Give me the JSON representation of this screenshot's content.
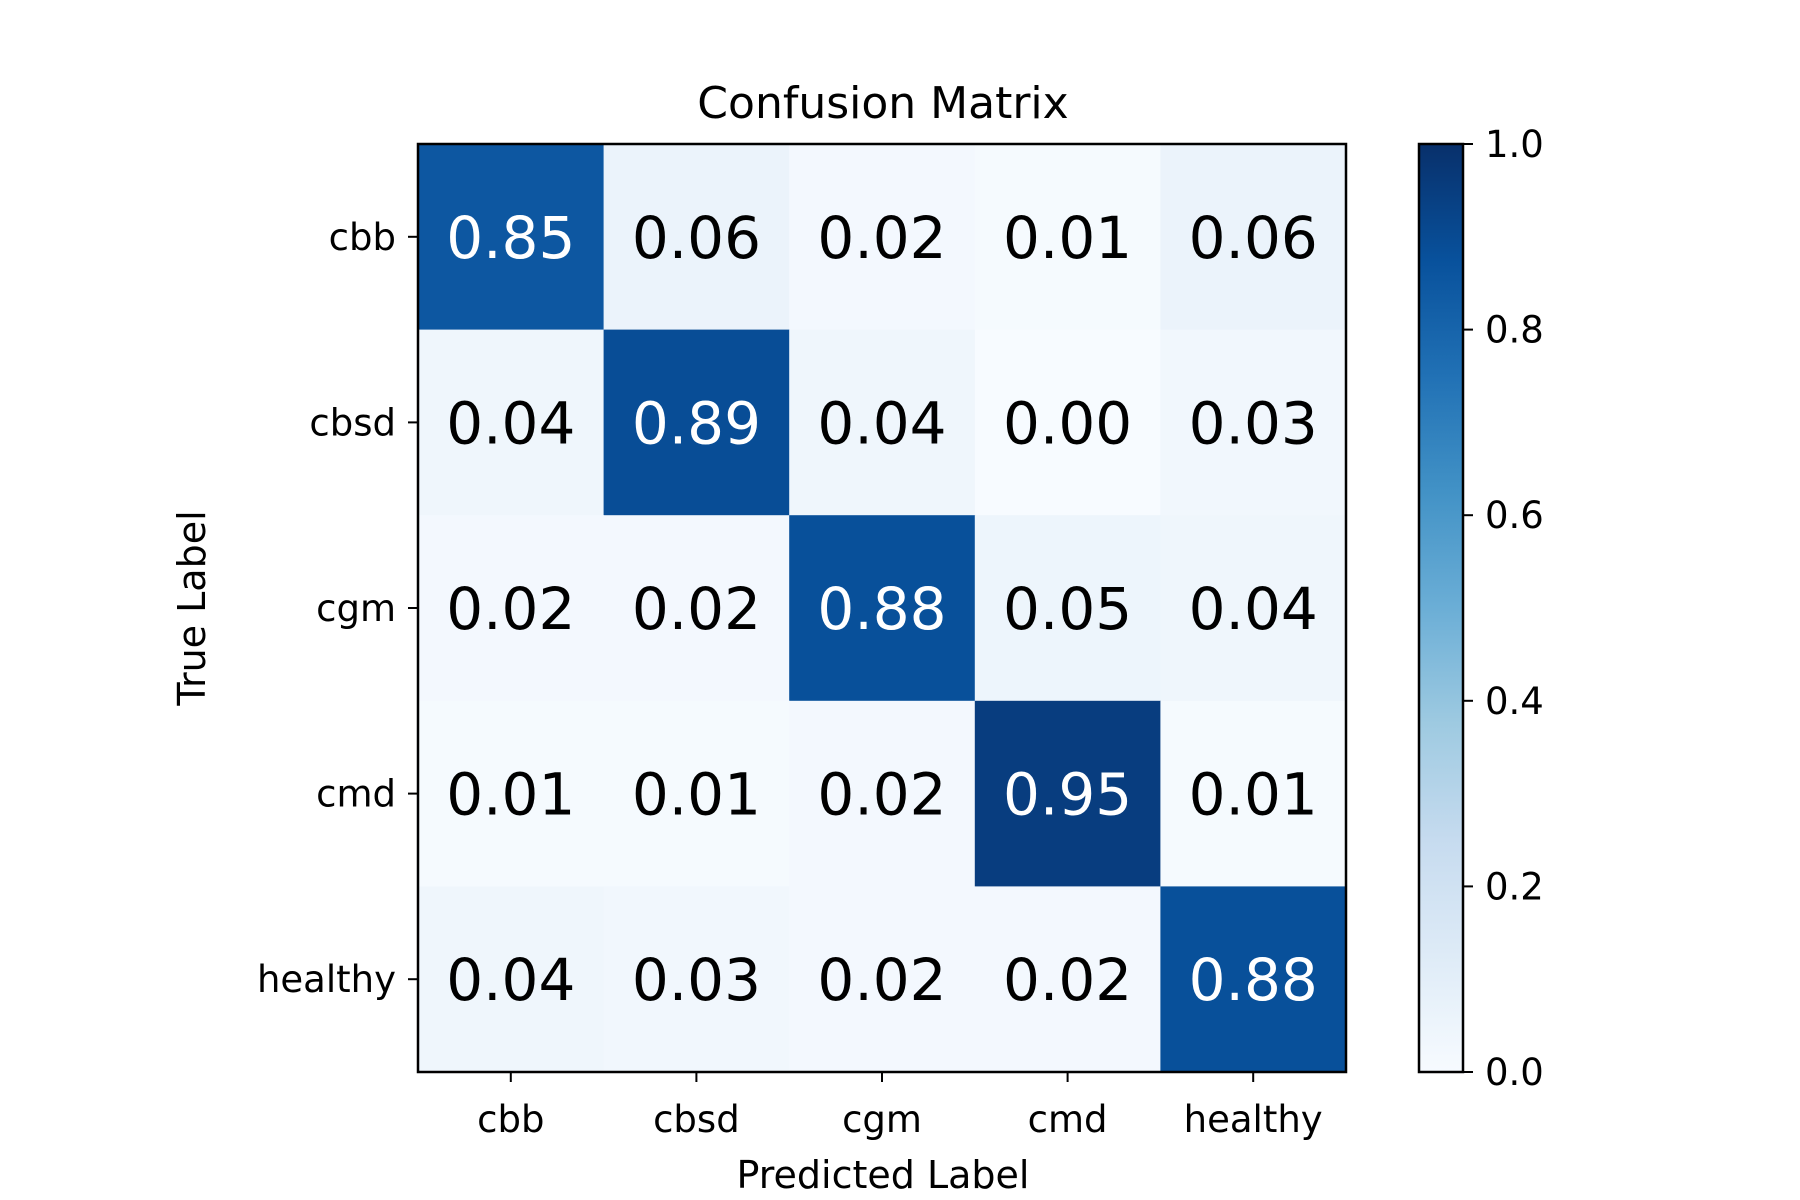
{
  "chart_data": {
    "type": "heatmap",
    "title": "Confusion Matrix",
    "xlabel": "Predicted Label",
    "ylabel": "True Label",
    "x_categories": [
      "cbb",
      "cbsd",
      "cgm",
      "cmd",
      "healthy"
    ],
    "y_categories": [
      "cbb",
      "cbsd",
      "cgm",
      "cmd",
      "healthy"
    ],
    "values": [
      [
        0.85,
        0.06,
        0.02,
        0.01,
        0.06
      ],
      [
        0.04,
        0.89,
        0.04,
        0.0,
        0.03
      ],
      [
        0.02,
        0.02,
        0.88,
        0.05,
        0.04
      ],
      [
        0.01,
        0.01,
        0.02,
        0.95,
        0.01
      ],
      [
        0.04,
        0.03,
        0.02,
        0.02,
        0.88
      ]
    ],
    "value_labels": [
      [
        "0.85",
        "0.06",
        "0.02",
        "0.01",
        "0.06"
      ],
      [
        "0.04",
        "0.89",
        "0.04",
        "0.00",
        "0.03"
      ],
      [
        "0.02",
        "0.02",
        "0.88",
        "0.05",
        "0.04"
      ],
      [
        "0.01",
        "0.01",
        "0.02",
        "0.95",
        "0.01"
      ],
      [
        "0.04",
        "0.03",
        "0.02",
        "0.02",
        "0.88"
      ]
    ],
    "colorbar": {
      "range": [
        0.0,
        1.0
      ],
      "ticks": [
        0.0,
        0.2,
        0.4,
        0.6,
        0.8,
        1.0
      ],
      "tick_labels": [
        "0.0",
        "0.2",
        "0.4",
        "0.6",
        "0.8",
        "1.0"
      ],
      "colormap": "Blues",
      "low_color": "#f7fbff",
      "high_color": "#08306b"
    },
    "grid": false
  }
}
